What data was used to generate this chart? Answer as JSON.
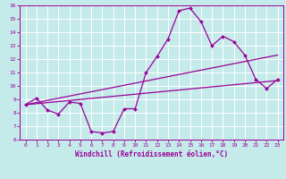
{
  "xlabel": "Windchill (Refroidissement éolien,°C)",
  "xlim": [
    0,
    23
  ],
  "ylim": [
    6,
    16
  ],
  "xticks": [
    0,
    1,
    2,
    3,
    4,
    5,
    6,
    7,
    8,
    9,
    10,
    11,
    12,
    13,
    14,
    15,
    16,
    17,
    18,
    19,
    20,
    21,
    22,
    23
  ],
  "yticks": [
    6,
    7,
    8,
    9,
    10,
    11,
    12,
    13,
    14,
    15,
    16
  ],
  "bg_color": "#c5eaea",
  "line_color": "#990099",
  "grid_color": "#ffffff",
  "series1_x": [
    0,
    1,
    2,
    3,
    4,
    5,
    6,
    7,
    8,
    9,
    10,
    11,
    12,
    13,
    14,
    15,
    16,
    17,
    18,
    19,
    20,
    21,
    22,
    23
  ],
  "series1_y": [
    8.6,
    9.1,
    8.2,
    7.9,
    8.8,
    8.7,
    6.6,
    6.5,
    6.6,
    8.3,
    8.3,
    11.0,
    12.2,
    13.5,
    15.6,
    15.8,
    14.8,
    13.0,
    13.7,
    13.3,
    12.3,
    10.5,
    9.8,
    10.5
  ],
  "series2_x": [
    0,
    23
  ],
  "series2_y": [
    8.6,
    10.4
  ],
  "series3_x": [
    0,
    23
  ],
  "series3_y": [
    8.6,
    12.3
  ]
}
